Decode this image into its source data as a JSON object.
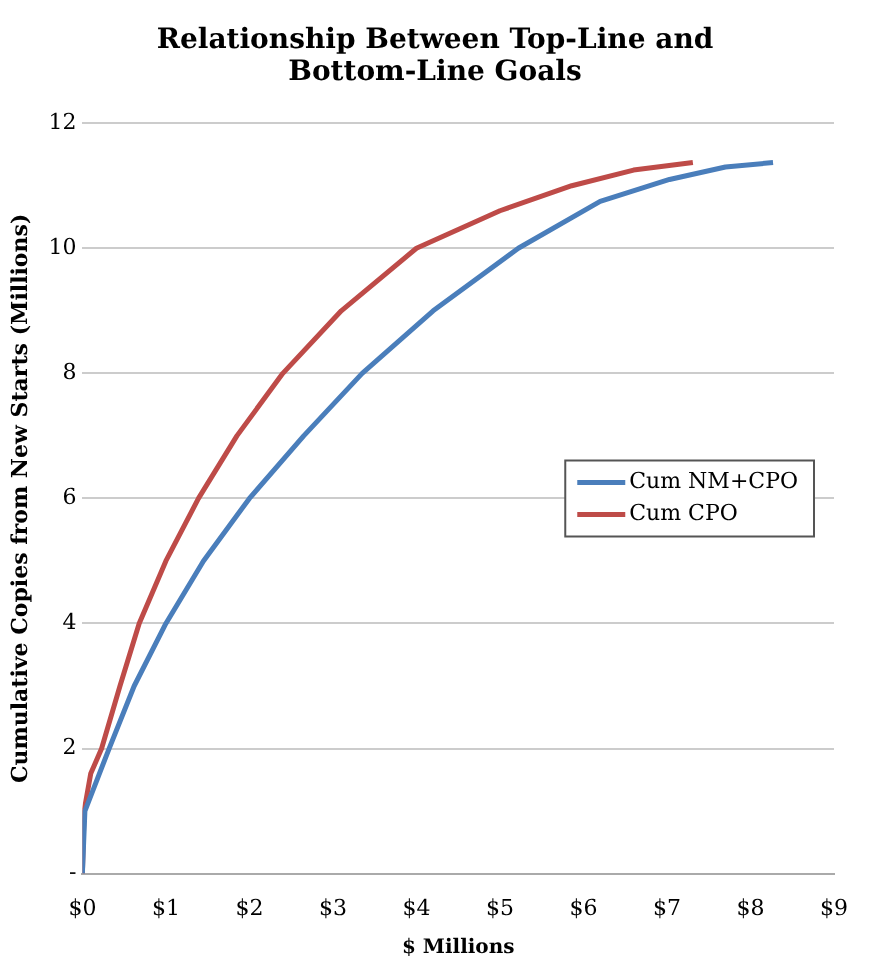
{
  "chart_data": {
    "type": "line",
    "title": "Relationship Between Top-Line and Bottom-Line Goals",
    "xlabel": "$ Millions",
    "ylabel": "Cumulative Copies from New Starts (Millions)",
    "series": [
      {
        "name": "Cum NM+CPO",
        "color": "#4a7ebb",
        "x": [
          0,
          0.03,
          0.32,
          0.62,
          1.0,
          1.45,
          2.0,
          2.65,
          3.35,
          4.2,
          5.22,
          6.2,
          7.03,
          7.7,
          8.27
        ],
        "values": [
          0,
          1,
          2,
          3,
          4,
          5,
          6,
          7,
          8,
          9,
          10,
          10.75,
          11.1,
          11.3,
          11.37
        ]
      },
      {
        "name": "Cum CPO",
        "color": "#be4b48",
        "x": [
          0,
          0.02,
          0.1,
          0.23,
          0.45,
          0.68,
          1.0,
          1.39,
          1.85,
          2.4,
          3.1,
          4.0,
          5.0,
          5.86,
          6.6,
          7.31
        ],
        "values": [
          0,
          1,
          1.6,
          2,
          3,
          4,
          5,
          6,
          7,
          8,
          9,
          10,
          10.6,
          11,
          11.25,
          11.37
        ]
      }
    ],
    "xlim": [
      0,
      9
    ],
    "xticks": [
      {
        "value": 0,
        "label": "$0"
      },
      {
        "value": 1,
        "label": "$1"
      },
      {
        "value": 2,
        "label": "$2"
      },
      {
        "value": 3,
        "label": "$3"
      },
      {
        "value": 4,
        "label": "$4"
      },
      {
        "value": 5,
        "label": "$5"
      },
      {
        "value": 6,
        "label": "$6"
      },
      {
        "value": 7,
        "label": "$7"
      },
      {
        "value": 8,
        "label": "$8"
      },
      {
        "value": 9,
        "label": "$9"
      }
    ],
    "ylim": [
      0,
      12
    ],
    "yticks": [
      {
        "value": 0,
        "label": "-"
      },
      2,
      4,
      6,
      8,
      10,
      12
    ],
    "grid": "y",
    "legend": "right",
    "marker": "none",
    "line_style": "solid"
  }
}
